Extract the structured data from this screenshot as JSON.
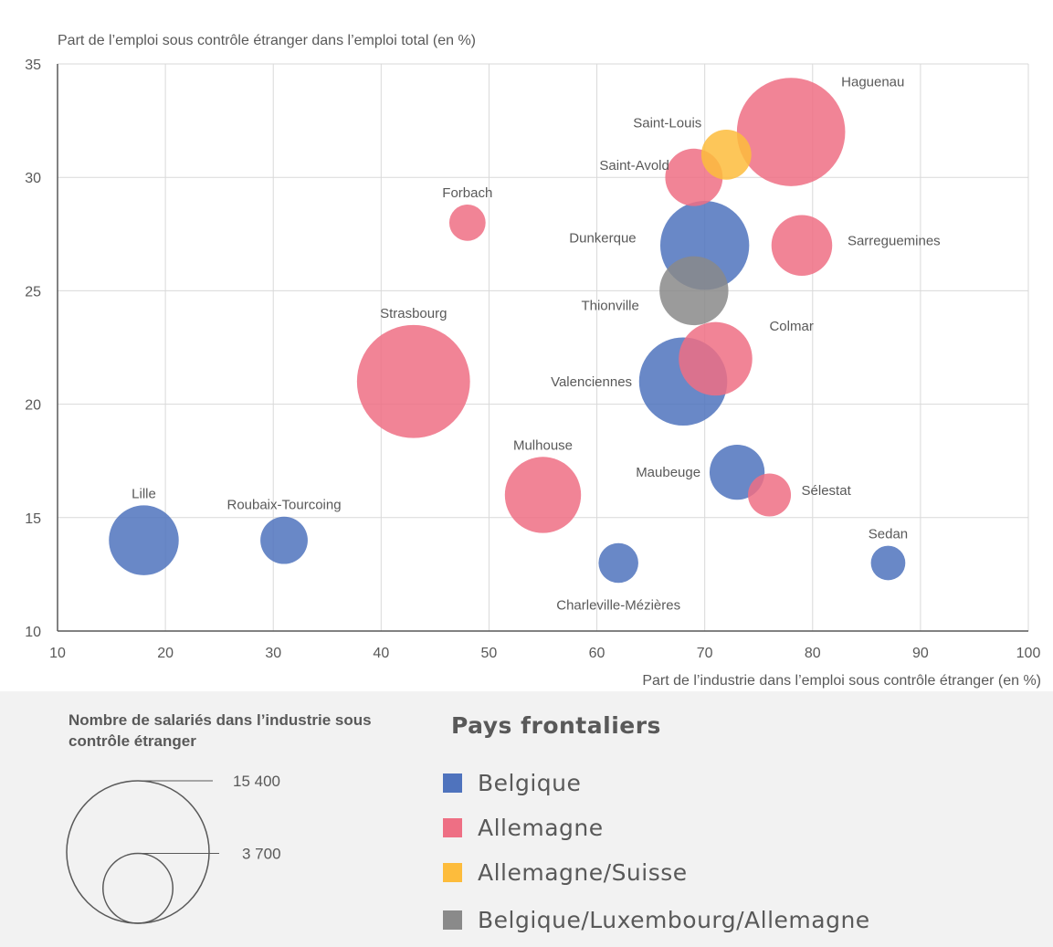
{
  "chart_data": {
    "type": "scatter",
    "subtype": "bubble",
    "ylabel": "Part de l’emploi sous contrôle étranger dans l’emploi total (en %)",
    "xlabel": "Part de l’industrie dans l’emploi sous contrôle étranger (en %)",
    "xlim": [
      10,
      100
    ],
    "ylim": [
      10,
      35
    ],
    "xticks": [
      "10",
      "20",
      "30",
      "40",
      "50",
      "60",
      "70",
      "80",
      "90",
      "100"
    ],
    "yticks": [
      "10",
      "15",
      "20",
      "25",
      "30",
      "35"
    ],
    "grid": true,
    "points": [
      {
        "name": "Lille",
        "x": 18,
        "y": 14,
        "group": "Belgique",
        "salaries": 3700
      },
      {
        "name": "Roubaix-Tourcoing",
        "x": 31,
        "y": 14,
        "group": "Belgique",
        "salaries": 1700
      },
      {
        "name": "Strasbourg",
        "x": 43,
        "y": 21,
        "group": "Allemagne",
        "salaries": 9700
      },
      {
        "name": "Forbach",
        "x": 48,
        "y": 28,
        "group": "Allemagne",
        "salaries": 1000
      },
      {
        "name": "Mulhouse",
        "x": 55,
        "y": 16,
        "group": "Allemagne",
        "salaries": 4400
      },
      {
        "name": "Charleville-Mézières",
        "x": 62,
        "y": 13,
        "group": "Belgique",
        "salaries": 1200
      },
      {
        "name": "Valenciennes",
        "x": 68,
        "y": 21,
        "group": "Belgique",
        "salaries": 5900
      },
      {
        "name": "Saint-Avold",
        "x": 69,
        "y": 30,
        "group": "Allemagne",
        "salaries": 2500
      },
      {
        "name": "Dunkerque",
        "x": 70,
        "y": 27,
        "group": "Belgique",
        "salaries": 6000
      },
      {
        "name": "Thionville",
        "x": 69,
        "y": 25,
        "group": "Belgique/Luxembourg/Allemagne",
        "salaries": 3600
      },
      {
        "name": "Colmar",
        "x": 71,
        "y": 22,
        "group": "Allemagne",
        "salaries": 4100
      },
      {
        "name": "Saint-Louis",
        "x": 72,
        "y": 31,
        "group": "Allemagne/Suisse",
        "salaries": 1900
      },
      {
        "name": "Maubeuge",
        "x": 73,
        "y": 17,
        "group": "Belgique",
        "salaries": 2300
      },
      {
        "name": "Sélestat",
        "x": 76,
        "y": 16,
        "group": "Allemagne",
        "salaries": 1400
      },
      {
        "name": "Haguenau",
        "x": 78,
        "y": 32,
        "group": "Allemagne",
        "salaries": 8900
      },
      {
        "name": "Sarreguemines",
        "x": 79,
        "y": 27,
        "group": "Allemagne",
        "salaries": 2800
      },
      {
        "name": "Sedan",
        "x": 87,
        "y": 13,
        "group": "Belgique",
        "salaries": 900
      }
    ],
    "colors": {
      "Belgique": "#4f73bd",
      "Allemagne": "#ee6f84",
      "Allemagne/Suisse": "#fdbc3c",
      "Belgique/Luxembourg/Allemagne": "#8a8a8a"
    }
  },
  "size_legend": {
    "title": "Nombre de salariés dans l’industrie sous contrôle étranger",
    "large_value": 15400,
    "small_value": 3700,
    "large_label": "15 400",
    "small_label": "3 700"
  },
  "legend": {
    "title": "Pays frontaliers",
    "items": [
      {
        "label": "Belgique",
        "color": "#4f73bd"
      },
      {
        "label": "Allemagne",
        "color": "#ee6f84"
      },
      {
        "label": "Allemagne/Suisse",
        "color": "#fdbc3c"
      },
      {
        "label": "Belgique/Luxembourg/Allemagne",
        "color": "#8a8a8a"
      }
    ]
  }
}
